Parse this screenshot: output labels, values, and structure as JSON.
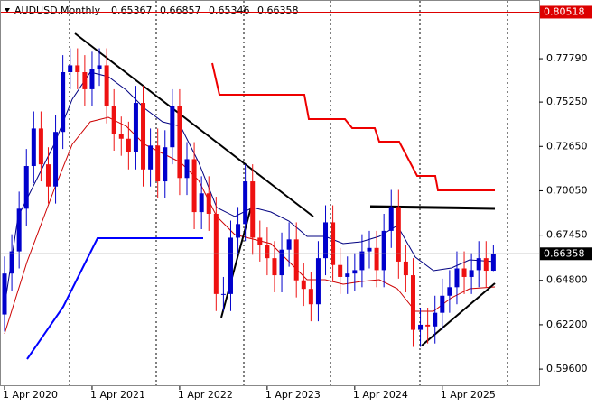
{
  "chart_data": {
    "type": "candlestick",
    "title": "AUDUSD,Monthly",
    "categories": [
      "1 Apr 2020",
      null,
      null,
      null,
      null,
      null,
      null,
      null,
      null,
      null,
      null,
      null,
      "1 Apr 2021",
      null,
      null,
      null,
      null,
      null,
      null,
      null,
      null,
      null,
      null,
      null,
      "1 Apr 2022",
      null,
      null,
      null,
      null,
      null,
      null,
      null,
      null,
      null,
      null,
      null,
      "1 Apr 2023",
      null,
      null,
      null,
      null,
      null,
      null,
      null,
      null,
      null,
      null,
      null,
      "1 Apr 2024",
      null,
      null,
      null,
      null,
      null,
      null,
      null,
      null,
      null,
      null,
      null,
      "1 Apr 2025",
      null,
      null,
      null,
      null,
      null,
      null,
      null
    ],
    "open": [
      0.628,
      0.652,
      0.665,
      0.69,
      0.715,
      0.737,
      0.716,
      0.703,
      0.735,
      0.77,
      0.774,
      0.77,
      0.76,
      0.772,
      0.774,
      0.75,
      0.734,
      0.731,
      0.723,
      0.752,
      0.713,
      0.727,
      0.706,
      0.726,
      0.75,
      0.708,
      0.719,
      0.688,
      0.699,
      0.687,
      0.64,
      0.64,
      0.673,
      0.681,
      0.706,
      0.673,
      0.669,
      0.661,
      0.651,
      0.666,
      0.672,
      0.648,
      0.643,
      0.634,
      0.661,
      0.682,
      0.657,
      0.65,
      0.652,
      0.654,
      0.665,
      0.667,
      0.654,
      0.677,
      0.691,
      0.659,
      0.651,
      0.619,
      0.622,
      0.621,
      0.629,
      0.639,
      0.644,
      0.655,
      0.65,
      0.654,
      0.661,
      0.65367
    ],
    "high": [
      0.662,
      0.675,
      0.7,
      0.725,
      0.747,
      0.747,
      0.726,
      0.745,
      0.78,
      0.784,
      0.784,
      0.78,
      0.782,
      0.784,
      0.784,
      0.76,
      0.744,
      0.741,
      0.762,
      0.762,
      0.737,
      0.737,
      0.736,
      0.76,
      0.76,
      0.729,
      0.729,
      0.709,
      0.709,
      0.697,
      0.65,
      0.683,
      0.691,
      0.716,
      0.716,
      0.683,
      0.679,
      0.671,
      0.676,
      0.682,
      0.682,
      0.658,
      0.653,
      0.671,
      0.692,
      0.692,
      0.667,
      0.662,
      0.664,
      0.675,
      0.677,
      0.677,
      0.687,
      0.701,
      0.701,
      0.669,
      0.661,
      0.632,
      0.632,
      0.639,
      0.649,
      0.654,
      0.665,
      0.665,
      0.664,
      0.671,
      0.671,
      0.66857
    ],
    "low": [
      0.618,
      0.642,
      0.655,
      0.68,
      0.705,
      0.706,
      0.693,
      0.693,
      0.725,
      0.76,
      0.76,
      0.75,
      0.75,
      0.762,
      0.74,
      0.724,
      0.721,
      0.713,
      0.713,
      0.703,
      0.703,
      0.696,
      0.696,
      0.716,
      0.698,
      0.698,
      0.678,
      0.678,
      0.677,
      0.63,
      0.63,
      0.63,
      0.663,
      0.671,
      0.663,
      0.659,
      0.651,
      0.641,
      0.641,
      0.656,
      0.638,
      0.633,
      0.624,
      0.624,
      0.651,
      0.647,
      0.64,
      0.64,
      0.642,
      0.644,
      0.655,
      0.644,
      0.644,
      0.667,
      0.649,
      0.641,
      0.609,
      0.609,
      0.611,
      0.611,
      0.619,
      0.629,
      0.634,
      0.64,
      0.64,
      0.644,
      0.64367,
      0.65346
    ],
    "close": [
      0.652,
      0.665,
      0.69,
      0.715,
      0.737,
      0.716,
      0.703,
      0.735,
      0.77,
      0.774,
      0.77,
      0.76,
      0.772,
      0.774,
      0.75,
      0.734,
      0.731,
      0.723,
      0.752,
      0.713,
      0.727,
      0.706,
      0.726,
      0.75,
      0.708,
      0.719,
      0.688,
      0.699,
      0.687,
      0.64,
      0.64,
      0.673,
      0.681,
      0.706,
      0.673,
      0.669,
      0.661,
      0.651,
      0.666,
      0.672,
      0.648,
      0.643,
      0.634,
      0.661,
      0.682,
      0.657,
      0.65,
      0.652,
      0.654,
      0.665,
      0.667,
      0.654,
      0.677,
      0.691,
      0.659,
      0.651,
      0.619,
      0.622,
      0.621,
      0.629,
      0.639,
      0.644,
      0.655,
      0.65,
      0.654,
      0.661,
      0.65367,
      0.66358
    ],
    "up_color": "#0000cc",
    "down_color": "#ee1111",
    "ylim": [
      0.586,
      0.8123
    ],
    "yticks": [
      {
        "value": 0.7779,
        "label": "0.77790"
      },
      {
        "value": 0.7525,
        "label": "0.75250"
      },
      {
        "value": 0.7265,
        "label": "0.72650"
      },
      {
        "value": 0.7005,
        "label": "0.70050"
      },
      {
        "value": 0.6745,
        "label": "0.67450"
      },
      {
        "value": 0.648,
        "label": "0.64800"
      },
      {
        "value": 0.622,
        "label": "0.62200"
      },
      {
        "value": 0.596,
        "label": "0.59600"
      }
    ],
    "level": 0.80518,
    "level_color": "#dd0000"
  }
}
